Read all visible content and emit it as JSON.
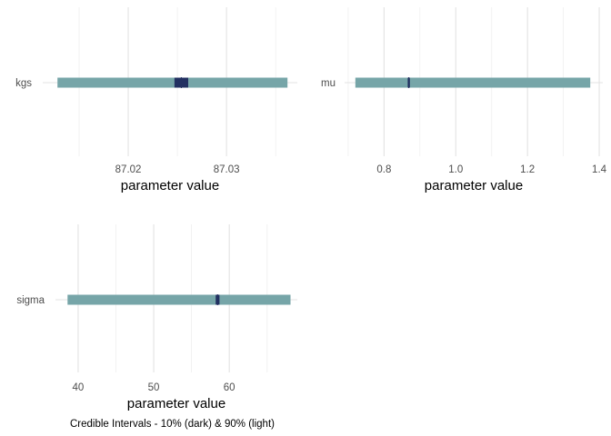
{
  "caption": "Credible Intervals - 10% (dark) & 90% (light)",
  "colors": {
    "light": "#76a5a8",
    "dark": "#223061",
    "grid_major": "#e3e3e3",
    "grid_minor": "#efefef"
  },
  "chart_data": [
    {
      "type": "interval",
      "parameter": "kgs",
      "xlabel": "parameter value",
      "x_ticks": [
        87.02,
        87.03
      ],
      "x_tick_labels": [
        "87.02",
        "87.03"
      ],
      "xlim": [
        87.0113,
        87.0372
      ],
      "interval_90": [
        87.0128,
        87.0362
      ],
      "interval_10": [
        87.0247,
        87.0261
      ],
      "median": 87.0254
    },
    {
      "type": "interval",
      "parameter": "mu",
      "xlabel": "parameter value",
      "x_ticks": [
        0.8,
        1.0,
        1.2,
        1.4
      ],
      "x_tick_labels": [
        "0.8",
        "1.0",
        "1.2",
        "1.4"
      ],
      "xlim": [
        0.69,
        1.41
      ],
      "interval_90": [
        0.72,
        1.375
      ],
      "interval_10": [
        0.866,
        0.872
      ],
      "median": 0.869
    },
    {
      "type": "interval",
      "parameter": "sigma",
      "xlabel": "parameter value",
      "x_ticks": [
        40,
        50,
        60
      ],
      "x_tick_labels": [
        "40",
        "50",
        "60"
      ],
      "xlim": [
        37,
        69
      ],
      "interval_90": [
        38.6,
        68.1
      ],
      "interval_10": [
        58.2,
        58.7
      ],
      "median": 58.45
    }
  ]
}
